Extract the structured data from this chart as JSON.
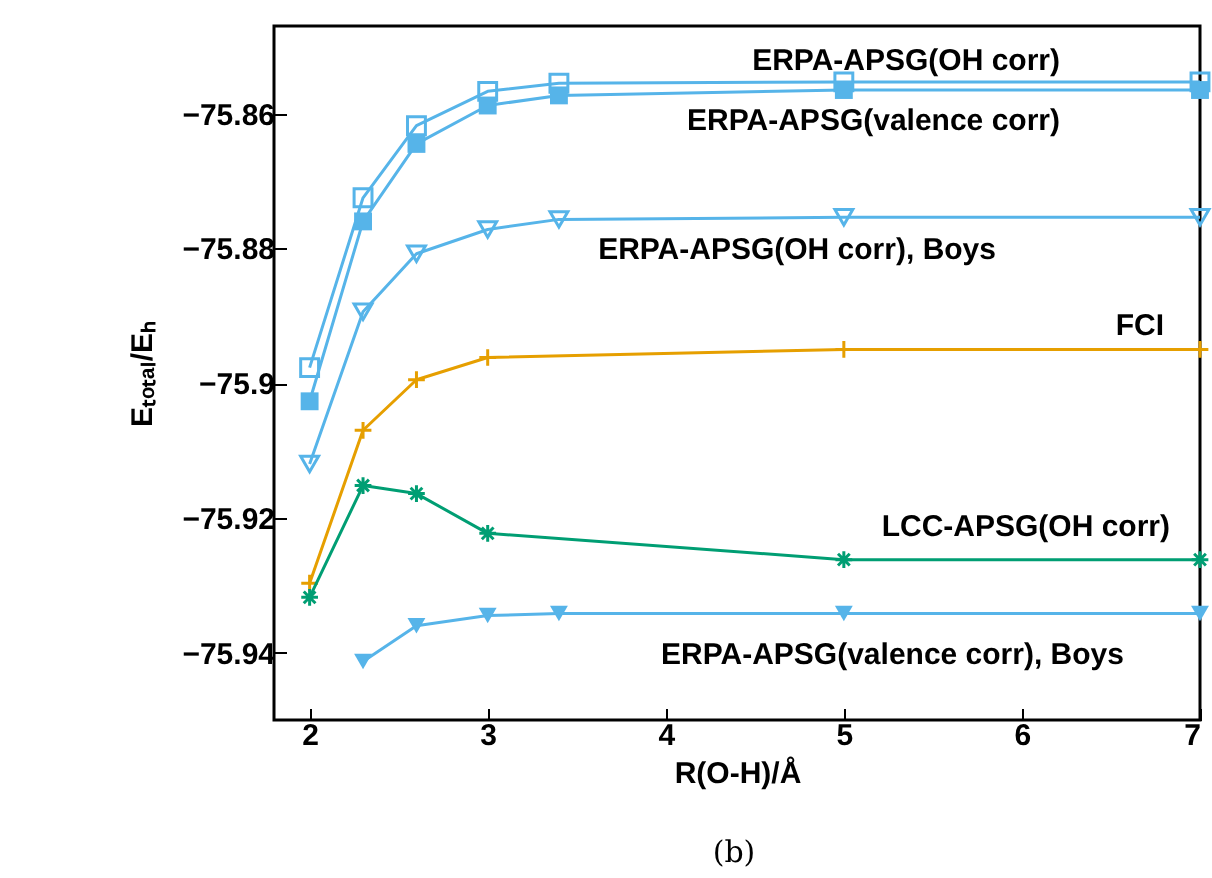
{
  "chart_data": {
    "type": "line",
    "xlabel": "R(O-H)/Å",
    "ylabel": "Eₜₒₜₐₗ/Eₕ",
    "annotations": [
      "(b)"
    ],
    "xlim": [
      1.8,
      7
    ],
    "xticks": [
      2,
      3,
      4,
      5,
      6,
      7
    ],
    "ylim": [
      -75.95,
      -75.847
    ],
    "yticks": [
      -75.86,
      -75.88,
      -75.9,
      -75.92,
      -75.94
    ],
    "grid": false,
    "series": [
      {
        "name": "ERPA-APSG(OH corr)",
        "color": "#56b4e9",
        "marker": "square",
        "x": [
          2,
          2.3,
          2.6,
          3,
          3.4,
          5,
          7
        ],
        "values": [
          -75.8977,
          -75.8725,
          -75.8618,
          -75.8567,
          -75.8555,
          -75.8553,
          -75.8553
        ]
      },
      {
        "name": "ERPA-APSG(valence corr)",
        "color": "#56b4e9",
        "marker": "square",
        "x": [
          2,
          2.3,
          2.6,
          3,
          3.4,
          5,
          7
        ],
        "values": [
          -75.9027,
          -75.876,
          -75.8645,
          -75.8588,
          -75.8573,
          -75.8565,
          -75.8565
        ]
      },
      {
        "name": "ERPA-APSG(OH corr), Boys",
        "color": "#56b4e9",
        "marker": "triangle",
        "x": [
          2,
          2.3,
          2.6,
          3,
          3.4,
          5,
          7
        ],
        "values": [
          -75.912,
          -75.8894,
          -75.8808,
          -75.8772,
          -75.8757,
          -75.8754,
          -75.8754
        ]
      },
      {
        "name": "FCI",
        "color": "#e69f00",
        "marker": "cross",
        "x": [
          2,
          2.3,
          2.6,
          3,
          5,
          7
        ],
        "values": [
          -75.9297,
          -75.907,
          -75.8995,
          -75.8962,
          -75.895,
          -75.895
        ]
      },
      {
        "name": "LCC-APSG(OH corr)",
        "color": "#009e73",
        "marker": "cross",
        "x": [
          2,
          2.3,
          2.6,
          3,
          5,
          7
        ],
        "values": [
          -75.9318,
          -75.9152,
          -75.9164,
          -75.9223,
          -75.9262,
          -75.9262
        ]
      },
      {
        "name": "ERPA-APSG(valence corr), Boys",
        "color": "#56b4e9",
        "marker": "triangle",
        "x": [
          2.3,
          2.6,
          3,
          3.4,
          5,
          7
        ],
        "values": [
          -75.9413,
          -75.936,
          -75.9345,
          -75.9342,
          -75.9342,
          -75.9342
        ]
      }
    ]
  }
}
